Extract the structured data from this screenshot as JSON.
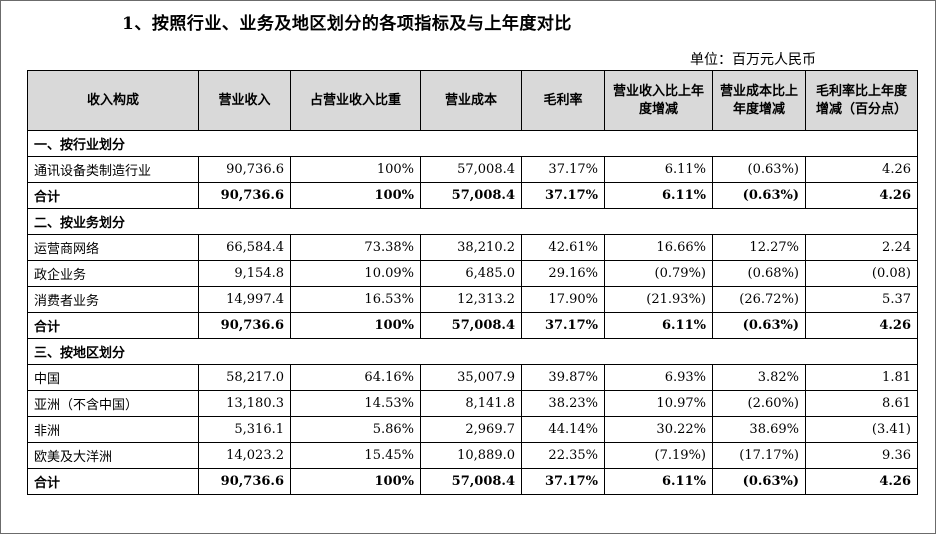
{
  "title": "1、按照行业、业务及地区划分的各项指标及与上年度对比",
  "unit": "单位：百万元人民币",
  "headers": [
    "收入构成",
    "营业收入",
    "占营业收入比重",
    "营业成本",
    "毛利率",
    "营业收入比上年度增减",
    "营业成本比上年度增减",
    "毛利率比上年度增减（百分点）"
  ],
  "sections": [
    {
      "title": "一、按行业划分",
      "rows": [
        [
          "通讯设备类制造行业",
          "90,736.6",
          "100%",
          "57,008.4",
          "37.17%",
          "6.11%",
          "(0.63%)",
          "4.26"
        ]
      ],
      "total": [
        "合计",
        "90,736.6",
        "100%",
        "57,008.4",
        "37.17%",
        "6.11%",
        "(0.63%)",
        "4.26"
      ]
    },
    {
      "title": "二、按业务划分",
      "rows": [
        [
          "运营商网络",
          "66,584.4",
          "73.38%",
          "38,210.2",
          "42.61%",
          "16.66%",
          "12.27%",
          "2.24"
        ],
        [
          "政企业务",
          "9,154.8",
          "10.09%",
          "6,485.0",
          "29.16%",
          "(0.79%)",
          "(0.68%)",
          "(0.08)"
        ],
        [
          "消费者业务",
          "14,997.4",
          "16.53%",
          "12,313.2",
          "17.90%",
          "(21.93%)",
          "(26.72%)",
          "5.37"
        ]
      ],
      "total": [
        "合计",
        "90,736.6",
        "100%",
        "57,008.4",
        "37.17%",
        "6.11%",
        "(0.63%)",
        "4.26"
      ]
    },
    {
      "title": "三、按地区划分",
      "rows": [
        [
          "中国",
          "58,217.0",
          "64.16%",
          "35,007.9",
          "39.87%",
          "6.93%",
          "3.82%",
          "1.81"
        ],
        [
          "亚洲（不含中国）",
          "13,180.3",
          "14.53%",
          "8,141.8",
          "38.23%",
          "10.97%",
          "(2.60%)",
          "8.61"
        ],
        [
          "非洲",
          "5,316.1",
          "5.86%",
          "2,969.7",
          "44.14%",
          "30.22%",
          "38.69%",
          "(3.41)"
        ],
        [
          "欧美及大洋洲",
          "14,023.2",
          "15.45%",
          "10,889.0",
          "22.35%",
          "(7.19%)",
          "(17.17%)",
          "9.36"
        ]
      ],
      "total": [
        "合计",
        "90,736.6",
        "100%",
        "57,008.4",
        "37.17%",
        "6.11%",
        "(0.63%)",
        "4.26"
      ]
    }
  ]
}
